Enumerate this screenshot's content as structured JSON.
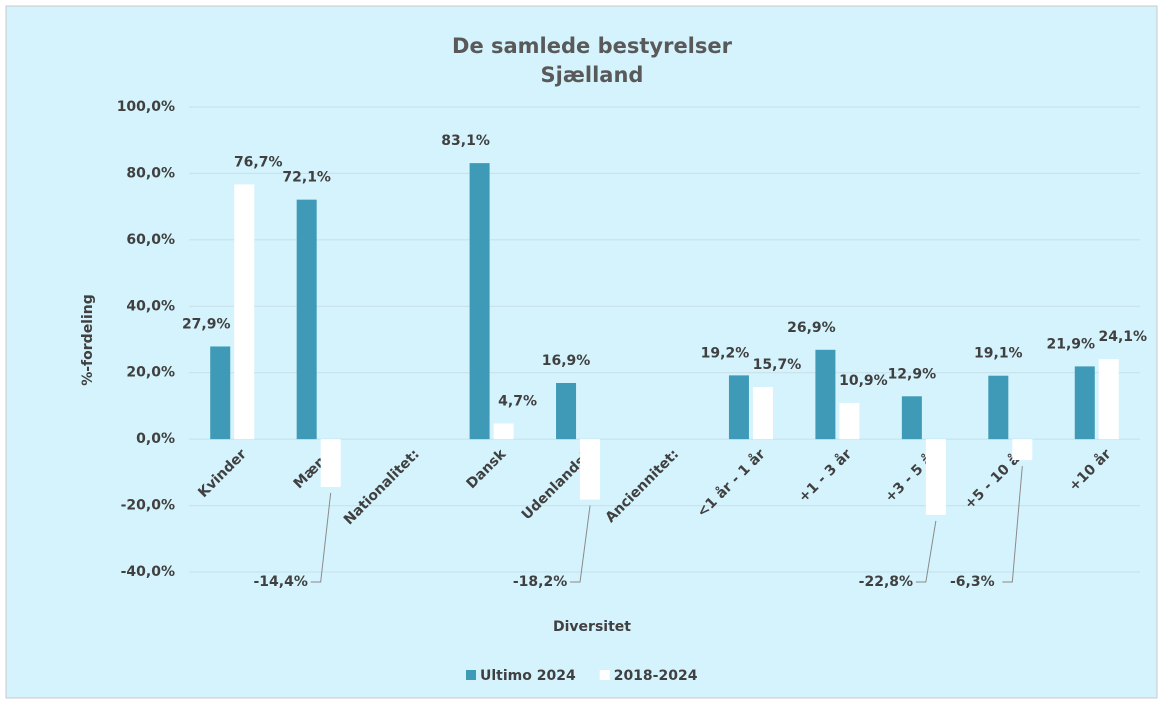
{
  "chart_data": {
    "type": "bar",
    "title": [
      "De samlede bestyrelser",
      "Sjælland"
    ],
    "xlabel": "Diversitet",
    "ylabel": "%-fordeling",
    "categories": [
      "Kvinder",
      "Mænd",
      "Nationalitet:",
      "Dansk",
      "Udenlandsk",
      "Anciennitet:",
      "<1 år - 1 år",
      "+1 - 3 år",
      "+3 - 5 år",
      "+5 - 10 år",
      "+10 år"
    ],
    "series": [
      {
        "name": "Ultimo 2024",
        "color": "#3e9ab6",
        "values": [
          27.9,
          72.1,
          null,
          83.1,
          16.9,
          null,
          19.2,
          26.9,
          12.9,
          19.1,
          21.9
        ],
        "value_labels": [
          "27,9%",
          "72,1%",
          null,
          "83,1%",
          "16,9%",
          null,
          "19,2%",
          "26,9%",
          "12,9%",
          "19,1%",
          "21,9%"
        ]
      },
      {
        "name": "2018-2024",
        "color": "#ffffff",
        "values": [
          76.7,
          -14.4,
          null,
          4.7,
          -18.2,
          null,
          15.7,
          10.9,
          -22.8,
          -6.3,
          24.1
        ],
        "value_labels": [
          "76,7%",
          "-14,4%",
          null,
          "4,7%",
          "-18,2%",
          null,
          "15,7%",
          "10,9%",
          "-22,8%",
          "-6,3%",
          "24,1%"
        ]
      }
    ],
    "ylim": [
      -40,
      100
    ],
    "yticks": [
      {
        "value": -40,
        "label": "-40,0%"
      },
      {
        "value": -20,
        "label": "-20,0%"
      },
      {
        "value": 0,
        "label": "0,0%"
      },
      {
        "value": 20,
        "label": "20,0%"
      },
      {
        "value": 40,
        "label": "40,0%"
      },
      {
        "value": 60,
        "label": "60,0%"
      },
      {
        "value": 80,
        "label": "80,0%"
      },
      {
        "value": 100,
        "label": "100,0%"
      }
    ],
    "grid": true,
    "legend": "bottom"
  }
}
